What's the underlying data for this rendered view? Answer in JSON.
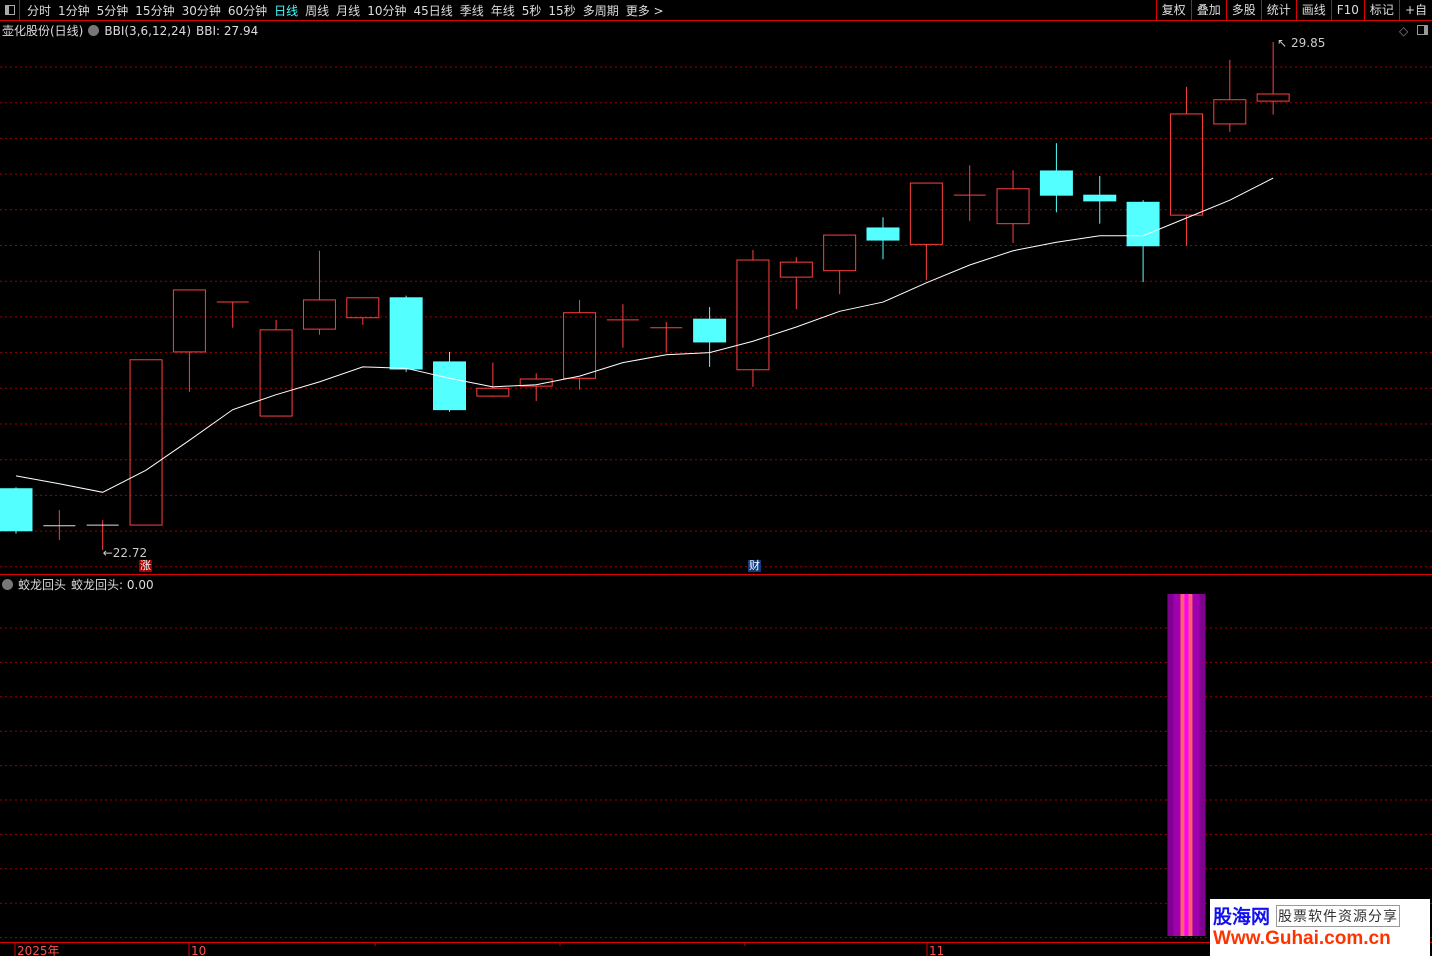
{
  "toolbar": {
    "periods": [
      "分时",
      "1分钟",
      "5分钟",
      "15分钟",
      "30分钟",
      "60分钟",
      "日线",
      "周线",
      "月线",
      "10分钟",
      "45日线",
      "季线",
      "年线",
      "5秒",
      "15秒",
      "多周期",
      "更多 >"
    ],
    "active_period": "日线",
    "right_buttons": [
      "复权",
      "叠加",
      "多股",
      "统计",
      "画线",
      "F10",
      "标记",
      "+自"
    ]
  },
  "main_title": {
    "stock": "壶化股份(日线)",
    "indicator": "BBI(3,6,12,24)",
    "value_label": "BBI: 27.94"
  },
  "indicator_panel": {
    "name": "蛟龙回头",
    "value_label": "蛟龙回头: 0.00"
  },
  "markers": [
    {
      "text": "涨",
      "color": "#a00000"
    },
    {
      "text": "财",
      "color": "#103a80"
    }
  ],
  "logo": {
    "brand": "股海网",
    "slogan": "股票软件资源分享",
    "url": "Www.Guhai.com.cn"
  },
  "colors": {
    "up": "#ff4040",
    "down": "#54ffff",
    "bbi": "#ffffff",
    "grid": "#a00000",
    "signal": "#c000c0"
  },
  "chart_data": {
    "type": "candlestick",
    "price_range": [
      22.72,
      29.85
    ],
    "high_label": "29.85",
    "low_label": "22.72",
    "x_labels": [
      "2025年",
      "10",
      "11"
    ],
    "grid": true,
    "ohlc": [
      [
        23.58,
        23.6,
        22.95,
        22.99
      ],
      [
        23.06,
        23.28,
        22.86,
        23.06
      ],
      [
        23.07,
        23.14,
        22.72,
        23.07
      ],
      [
        23.07,
        25.39,
        23.07,
        25.39
      ],
      [
        25.5,
        26.37,
        24.94,
        26.37
      ],
      [
        26.2,
        26.2,
        25.84,
        26.2
      ],
      [
        24.6,
        25.95,
        24.6,
        25.81
      ],
      [
        25.82,
        26.92,
        25.74,
        26.23
      ],
      [
        25.98,
        26.26,
        25.88,
        26.26
      ],
      [
        26.26,
        26.29,
        25.22,
        25.26
      ],
      [
        25.36,
        25.5,
        24.66,
        24.69
      ],
      [
        24.88,
        25.35,
        24.87,
        24.99
      ],
      [
        25.02,
        25.2,
        24.81,
        25.12
      ],
      [
        25.13,
        26.23,
        24.97,
        26.05
      ],
      [
        25.95,
        26.17,
        25.56,
        25.95
      ],
      [
        25.84,
        25.92,
        25.5,
        25.84
      ],
      [
        25.96,
        26.13,
        25.29,
        25.64
      ],
      [
        25.25,
        26.93,
        25.01,
        26.79
      ],
      [
        26.55,
        26.83,
        26.1,
        26.76
      ],
      [
        26.64,
        27.14,
        26.31,
        27.14
      ],
      [
        27.24,
        27.39,
        26.8,
        27.07
      ],
      [
        27.01,
        27.87,
        26.51,
        27.87
      ],
      [
        27.7,
        28.12,
        27.34,
        27.7
      ],
      [
        27.3,
        28.05,
        27.03,
        27.79
      ],
      [
        28.04,
        28.43,
        27.46,
        27.7
      ],
      [
        27.7,
        27.97,
        27.3,
        27.62
      ],
      [
        27.6,
        27.63,
        26.48,
        26.99
      ],
      [
        27.42,
        29.22,
        26.99,
        28.84
      ],
      [
        28.7,
        29.6,
        28.59,
        29.04
      ],
      [
        29.02,
        29.85,
        28.83,
        29.12
      ]
    ],
    "bbi": [
      23.76,
      23.65,
      23.53,
      23.84,
      24.26,
      24.69,
      24.9,
      25.08,
      25.29,
      25.27,
      25.13,
      25.01,
      25.04,
      25.16,
      25.35,
      25.46,
      25.49,
      25.65,
      25.85,
      26.07,
      26.2,
      26.47,
      26.72,
      26.92,
      27.04,
      27.13,
      27.13,
      27.38,
      27.63,
      27.94
    ],
    "signal": [
      0,
      0,
      0,
      0,
      0,
      0,
      0,
      0,
      0,
      0,
      0,
      0,
      0,
      0,
      0,
      0,
      0,
      0,
      0,
      0,
      0,
      0,
      0,
      0,
      0,
      0,
      0,
      1,
      0,
      0
    ]
  }
}
